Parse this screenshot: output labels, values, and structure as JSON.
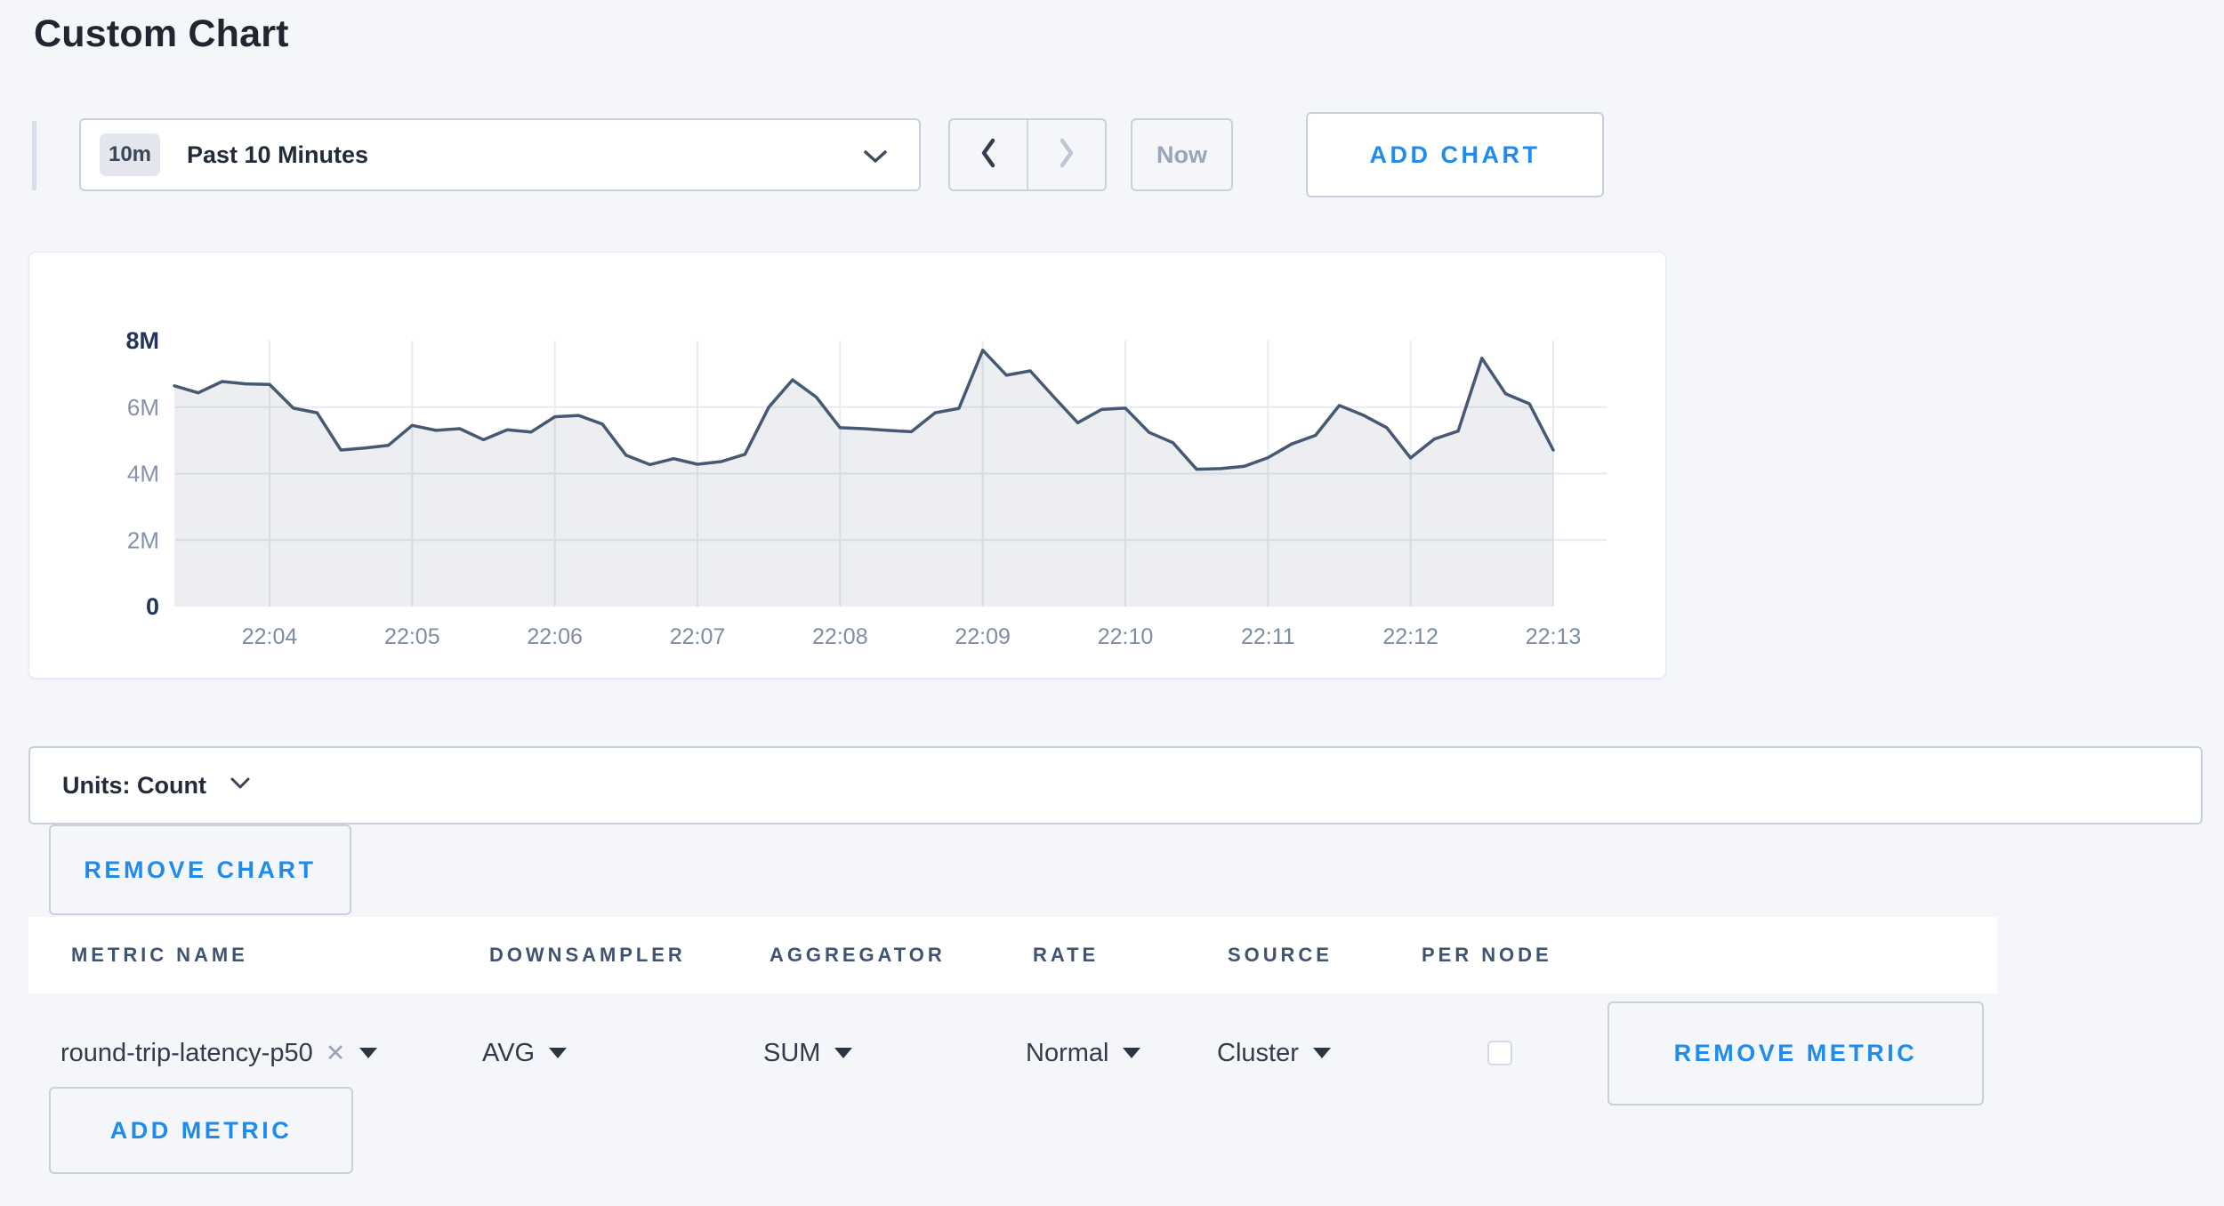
{
  "page": {
    "title": "Custom Chart",
    "background": "#f4f6fa",
    "accent_blue": "#1f8bed"
  },
  "toolbar": {
    "time_scale_badge": "10m",
    "time_scale_label": "Past 10 Minutes",
    "now_label": "Now",
    "add_chart_label": "ADD CHART"
  },
  "chart_data": {
    "type": "area",
    "title": "",
    "series_name": "round-trip-latency-p50",
    "unit": "Count",
    "ylim": [
      0,
      8000000
    ],
    "ylabel": "",
    "xlabel": "",
    "grid": true,
    "legend": false,
    "y_tick_labels": [
      "0",
      "2M",
      "4M",
      "6M",
      "8M"
    ],
    "x_tick_labels": [
      "22:04",
      "22:05",
      "22:06",
      "22:07",
      "22:08",
      "22:09",
      "22:10",
      "22:11",
      "22:12",
      "22:13"
    ],
    "sample_interval_seconds": 10,
    "first_point_time": "22:03:20",
    "first_tick_point_index": 4,
    "points_per_tick": 6,
    "line_color": "#475872",
    "fill_color": "rgba(71,88,114,0.10)",
    "values": [
      6640000,
      6430000,
      6770000,
      6700000,
      6680000,
      5970000,
      5830000,
      4710000,
      4770000,
      4850000,
      5450000,
      5300000,
      5350000,
      5020000,
      5320000,
      5250000,
      5710000,
      5750000,
      5490000,
      4550000,
      4270000,
      4450000,
      4280000,
      4360000,
      4580000,
      6000000,
      6820000,
      6300000,
      5380000,
      5350000,
      5300000,
      5260000,
      5830000,
      5960000,
      7710000,
      6960000,
      7090000,
      6300000,
      5530000,
      5930000,
      5970000,
      5240000,
      4930000,
      4130000,
      4150000,
      4220000,
      4480000,
      4890000,
      5150000,
      6050000,
      5760000,
      5380000,
      4470000,
      5040000,
      5280000,
      7470000,
      6400000,
      6100000,
      4710000
    ]
  },
  "units_bar": {
    "label": "Units: Count"
  },
  "remove_chart_label": "REMOVE CHART",
  "metric_table": {
    "headers": [
      "METRIC NAME",
      "DOWNSAMPLER",
      "AGGREGATOR",
      "RATE",
      "SOURCE",
      "PER NODE"
    ],
    "row": {
      "metric_name": "round-trip-latency-p50",
      "remove_tag_symbol": "✕",
      "downsampler": "AVG",
      "aggregator": "SUM",
      "rate": "Normal",
      "source": "Cluster",
      "per_node_checked": false,
      "remove_label": "REMOVE METRIC"
    },
    "add_metric_label": "ADD METRIC"
  }
}
